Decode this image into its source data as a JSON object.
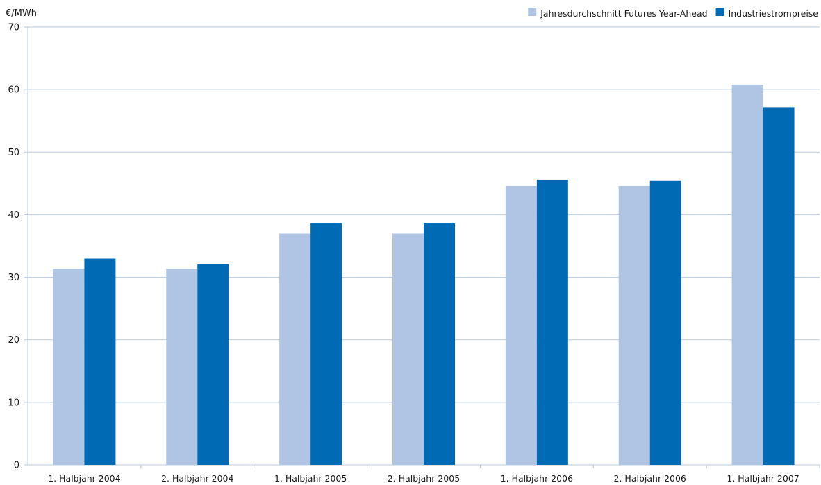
{
  "chart_data": {
    "type": "bar",
    "ylabel": "€/MWh",
    "categories": [
      "1. Halbjahr 2004",
      "2. Halbjahr 2004",
      "1. Halbjahr 2005",
      "2. Halbjahr 2005",
      "1. Halbjahr 2006",
      "2. Halbjahr 2006",
      "1. Halbjahr 2007"
    ],
    "series": [
      {
        "name": "Jahresdurchschnitt Futures Year-Ahead",
        "color": "#b0c4e4",
        "values": [
          31.4,
          31.4,
          37.0,
          37.0,
          44.6,
          44.6,
          60.8
        ]
      },
      {
        "name": "Industriestrompreise",
        "color": "#006ab4",
        "values": [
          33.0,
          32.1,
          38.6,
          38.6,
          45.6,
          45.4,
          57.2
        ]
      }
    ],
    "ylim": [
      0,
      70
    ],
    "yticks": [
      0,
      10,
      20,
      30,
      40,
      50,
      60,
      70
    ],
    "grid": true,
    "legend": "top-right"
  }
}
